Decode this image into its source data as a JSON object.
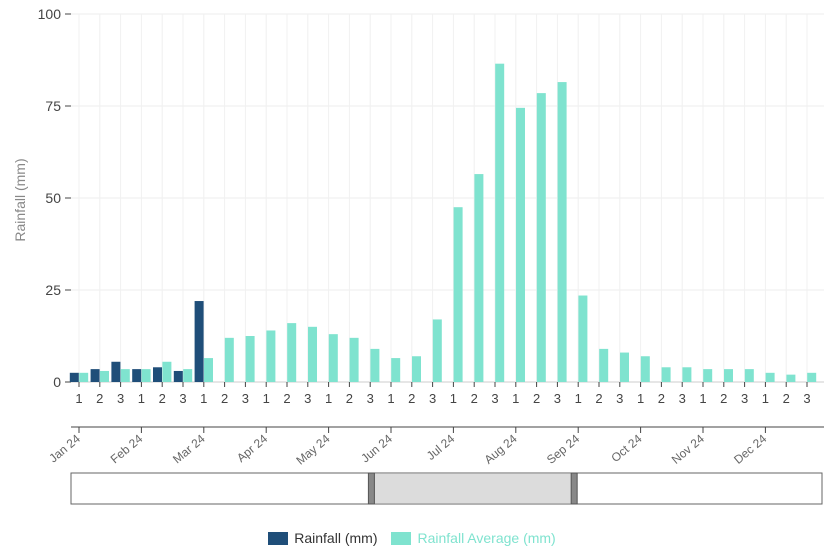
{
  "chart_data": {
    "type": "bar",
    "ylabel": "Rainfall (mm)",
    "ylim": [
      0,
      100
    ],
    "yticks": [
      0,
      25,
      50,
      75,
      100
    ],
    "grid": true,
    "legend_position": "bottom-center",
    "dekad_labels": [
      "1",
      "2",
      "3",
      "1",
      "2",
      "3",
      "1",
      "2",
      "3",
      "1",
      "2",
      "3",
      "1",
      "2",
      "3",
      "1",
      "2",
      "3",
      "1",
      "2",
      "3",
      "1",
      "2",
      "3",
      "1",
      "2",
      "3",
      "1",
      "2",
      "3",
      "1",
      "2",
      "3",
      "1",
      "2",
      "3"
    ],
    "month_labels": [
      "Jan 24",
      "Feb 24",
      "Mar 24",
      "Apr 24",
      "May 24",
      "Jun 24",
      "Jul 24",
      "Aug 24",
      "Sep 24",
      "Oct 24",
      "Nov 24",
      "Dec 24"
    ],
    "series": [
      {
        "name": "Rainfall (mm)",
        "color": "#1f4e79",
        "values": [
          2.5,
          3.5,
          5.5,
          3.5,
          4.0,
          3.0,
          22.0,
          null,
          null,
          null,
          null,
          null,
          null,
          null,
          null,
          null,
          null,
          null,
          null,
          null,
          null,
          null,
          null,
          null,
          null,
          null,
          null,
          null,
          null,
          null,
          null,
          null,
          null,
          null,
          null,
          null
        ]
      },
      {
        "name": "Rainfall Average (mm)",
        "color": "#7fe3cf",
        "values": [
          2.5,
          3.0,
          3.5,
          3.5,
          5.5,
          3.5,
          6.5,
          12.0,
          12.5,
          14.0,
          16.0,
          15.0,
          13.0,
          12.0,
          9.0,
          6.5,
          7.0,
          17.0,
          47.5,
          56.5,
          86.5,
          74.5,
          78.5,
          81.5,
          23.5,
          9.0,
          8.0,
          7.0,
          4.0,
          4.0,
          3.5,
          3.5,
          3.5,
          2.5,
          2.0,
          2.5
        ]
      }
    ],
    "range_slider": {
      "start_fraction": 0.4,
      "end_fraction": 0.67
    }
  }
}
